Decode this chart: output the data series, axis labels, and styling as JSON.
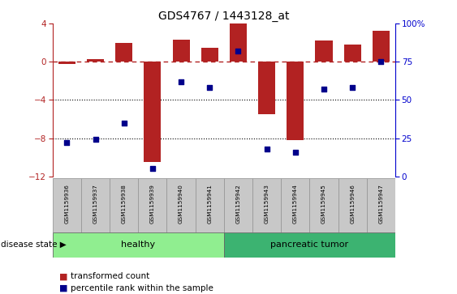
{
  "title": "GDS4767 / 1443128_at",
  "samples": [
    "GSM1159936",
    "GSM1159937",
    "GSM1159938",
    "GSM1159939",
    "GSM1159940",
    "GSM1159941",
    "GSM1159942",
    "GSM1159943",
    "GSM1159944",
    "GSM1159945",
    "GSM1159946",
    "GSM1159947"
  ],
  "bar_values": [
    -0.2,
    0.3,
    2.0,
    -10.5,
    2.3,
    1.5,
    4.0,
    -5.5,
    -8.2,
    2.2,
    1.8,
    3.2
  ],
  "percentile_values": [
    22,
    24,
    35,
    5,
    62,
    58,
    82,
    18,
    16,
    57,
    58,
    75
  ],
  "bar_color": "#B22222",
  "percentile_color": "#00008B",
  "ylim": [
    -12,
    4
  ],
  "yticks_left": [
    -12,
    -8,
    -4,
    0,
    4
  ],
  "yticks_right": [
    0,
    25,
    50,
    75,
    100
  ],
  "hline_y": 0,
  "dotted_lines": [
    -4,
    -8
  ],
  "healthy_n": 6,
  "tumor_n": 6,
  "healthy_color": "#90EE90",
  "tumor_color": "#3CB371",
  "disease_state_label": "disease state",
  "healthy_label": "healthy",
  "tumor_label": "pancreatic tumor",
  "legend1_label": "transformed count",
  "legend2_label": "percentile rank within the sample",
  "bar_width": 0.6,
  "right_ylim": [
    0,
    100
  ],
  "background_color": "#ffffff",
  "label_bg": "#C8C8C8"
}
